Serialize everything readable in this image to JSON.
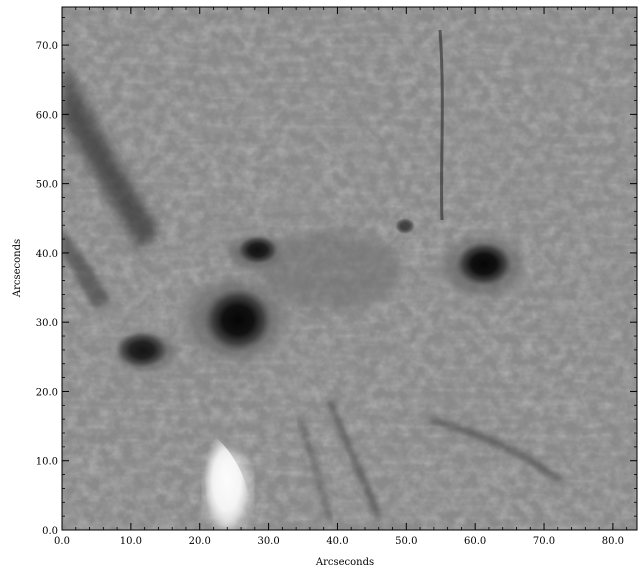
{
  "image": {
    "subject": "solar-sunspot-region",
    "colormap": "grayscale"
  },
  "axes": {
    "xlabel": "Arcseconds",
    "ylabel": "Arcseconds",
    "xlim": [
      0,
      83.5
    ],
    "ylim": [
      0,
      75.5
    ],
    "x_ticks": [
      "0.0",
      "10.0",
      "20.0",
      "30.0",
      "40.0",
      "50.0",
      "60.0",
      "70.0",
      "80.0"
    ],
    "y_ticks": [
      "0.0",
      "10.0",
      "20.0",
      "30.0",
      "40.0",
      "50.0",
      "60.0",
      "70.0"
    ]
  },
  "features": [
    {
      "name": "large-sunspot",
      "x": 25.0,
      "y": 30.0
    },
    {
      "name": "right-sunspot",
      "x": 60.0,
      "y": 37.5
    },
    {
      "name": "upper-pore",
      "x": 27.0,
      "y": 39.5
    },
    {
      "name": "left-pore",
      "x": 11.5,
      "y": 26.0
    },
    {
      "name": "bright-plage",
      "x": 24.0,
      "y": 5.0
    }
  ]
}
